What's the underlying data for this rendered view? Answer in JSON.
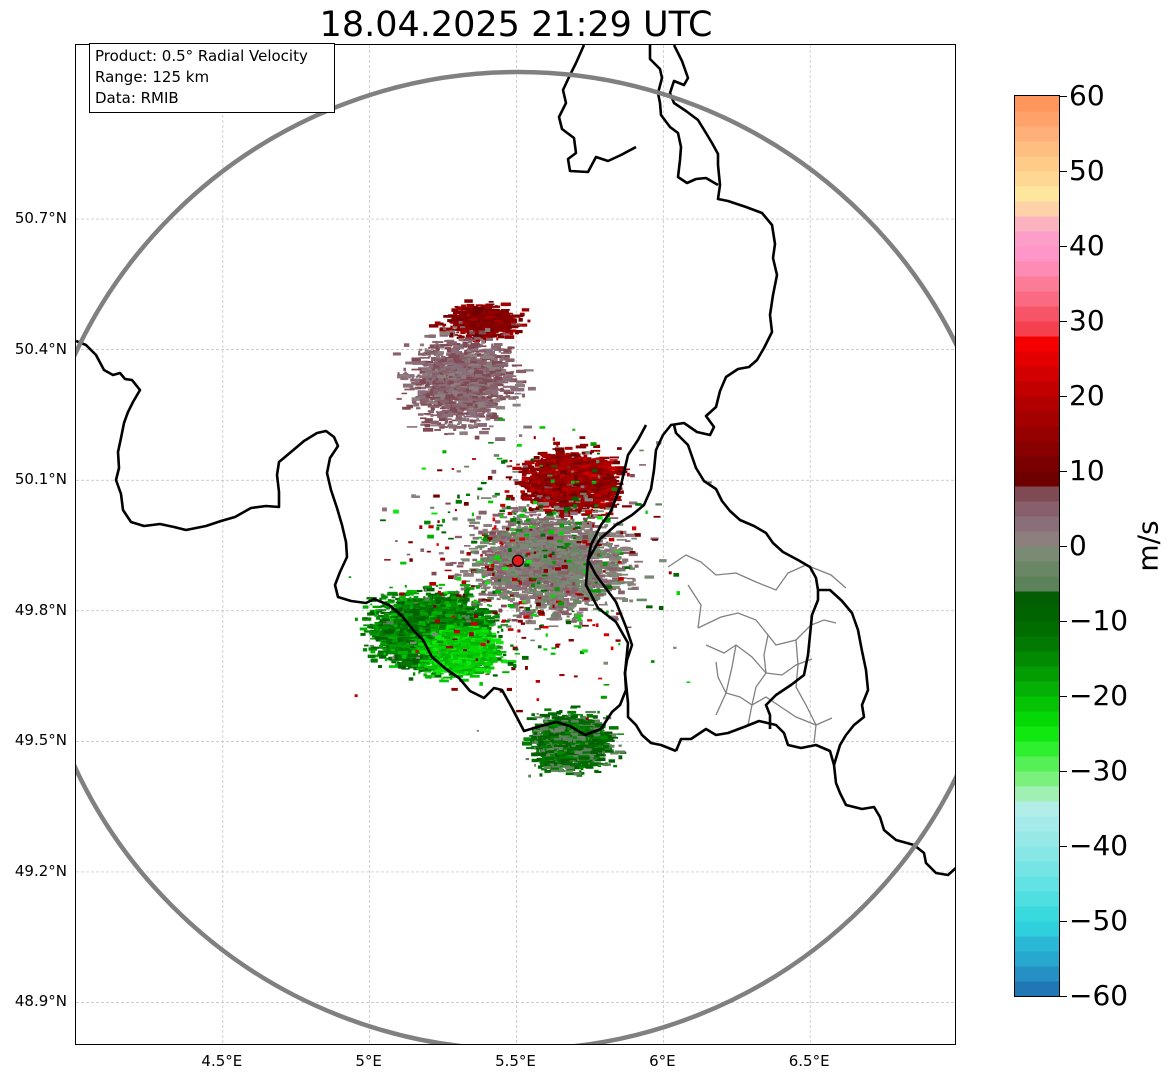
{
  "title": "18.04.2025 21:29 UTC",
  "info": {
    "product": "Product: 0.5° Radial Velocity",
    "range": "Range: 125 km",
    "data": "Data: RMIB"
  },
  "map": {
    "lon_range": [
      4.0,
      7.0
    ],
    "lat_range": [
      48.8,
      51.1
    ],
    "lon_ticks": [
      {
        "value": 4.5,
        "label": "4.5°E"
      },
      {
        "value": 5.0,
        "label": "5°E"
      },
      {
        "value": 5.5,
        "label": "5.5°E"
      },
      {
        "value": 6.0,
        "label": "6°E"
      },
      {
        "value": 6.5,
        "label": "6.5°E"
      }
    ],
    "lat_ticks": [
      {
        "value": 50.7,
        "label": "50.7°N"
      },
      {
        "value": 50.4,
        "label": "50.4°N"
      },
      {
        "value": 50.1,
        "label": "50.1°N"
      },
      {
        "value": 49.8,
        "label": "49.8°N"
      },
      {
        "value": 49.5,
        "label": "49.5°N"
      },
      {
        "value": 49.2,
        "label": "49.2°N"
      },
      {
        "value": 48.9,
        "label": "48.9°N"
      }
    ],
    "gridlines": true,
    "radar_site": {
      "lon": 5.505,
      "lat": 49.915,
      "color": "#e31a1c"
    },
    "range_ring_km": 125,
    "range_ring_color": "#808080"
  },
  "colorbar": {
    "unit": "m/s",
    "min": -60,
    "max": 60,
    "ticks": [
      {
        "value": 60,
        "label": "60"
      },
      {
        "value": 50,
        "label": "50"
      },
      {
        "value": 40,
        "label": "40"
      },
      {
        "value": 30,
        "label": "30"
      },
      {
        "value": 20,
        "label": "20"
      },
      {
        "value": 10,
        "label": "10"
      },
      {
        "value": 0,
        "label": "0"
      },
      {
        "value": -10,
        "label": "−10"
      },
      {
        "value": -20,
        "label": "−20"
      },
      {
        "value": -30,
        "label": "−30"
      },
      {
        "value": -40,
        "label": "−40"
      },
      {
        "value": -50,
        "label": "−50"
      },
      {
        "value": -60,
        "label": "−60"
      }
    ],
    "bands": [
      {
        "from": -60,
        "to": -58,
        "color": "#1f78b4"
      },
      {
        "from": -58,
        "to": -56,
        "color": "#2590c4"
      },
      {
        "from": -56,
        "to": -54,
        "color": "#27a8cf"
      },
      {
        "from": -54,
        "to": -52,
        "color": "#2ab8d6"
      },
      {
        "from": -52,
        "to": -50,
        "color": "#2dd0dc"
      },
      {
        "from": -50,
        "to": -48,
        "color": "#38dade"
      },
      {
        "from": -48,
        "to": -46,
        "color": "#4fdfe0"
      },
      {
        "from": -46,
        "to": -44,
        "color": "#62e2e2"
      },
      {
        "from": -44,
        "to": -42,
        "color": "#74e5e4"
      },
      {
        "from": -42,
        "to": -40,
        "color": "#86e7e6"
      },
      {
        "from": -40,
        "to": -38,
        "color": "#97e9e8"
      },
      {
        "from": -38,
        "to": -36,
        "color": "#a6ebeb"
      },
      {
        "from": -36,
        "to": -34,
        "color": "#b2ede8"
      },
      {
        "from": -34,
        "to": -32,
        "color": "#a0f0b4"
      },
      {
        "from": -32,
        "to": -30,
        "color": "#7cf07c"
      },
      {
        "from": -30,
        "to": -28,
        "color": "#55f055"
      },
      {
        "from": -28,
        "to": -26,
        "color": "#2ef02e"
      },
      {
        "from": -26,
        "to": -24,
        "color": "#10e810"
      },
      {
        "from": -24,
        "to": -22,
        "color": "#05d805"
      },
      {
        "from": -22,
        "to": -20,
        "color": "#04c404"
      },
      {
        "from": -20,
        "to": -18,
        "color": "#04b004"
      },
      {
        "from": -18,
        "to": -16,
        "color": "#039c03"
      },
      {
        "from": -16,
        "to": -14,
        "color": "#038a03"
      },
      {
        "from": -14,
        "to": -12,
        "color": "#027a02"
      },
      {
        "from": -12,
        "to": -10,
        "color": "#016d01"
      },
      {
        "from": -10,
        "to": -8,
        "color": "#016401"
      },
      {
        "from": -8,
        "to": -6,
        "color": "#035e03"
      },
      {
        "from": -6,
        "to": -4,
        "color": "#5c8259"
      },
      {
        "from": -4,
        "to": -2,
        "color": "#6a8765"
      },
      {
        "from": -2,
        "to": 0,
        "color": "#7b8a74"
      },
      {
        "from": 0,
        "to": 2,
        "color": "#8c7f7d"
      },
      {
        "from": 2,
        "to": 4,
        "color": "#8a6f7a"
      },
      {
        "from": 4,
        "to": 6,
        "color": "#87606b"
      },
      {
        "from": 6,
        "to": 8,
        "color": "#7f4a53"
      },
      {
        "from": 8,
        "to": 10,
        "color": "#6e0000"
      },
      {
        "from": 10,
        "to": 12,
        "color": "#7a0000"
      },
      {
        "from": 12,
        "to": 14,
        "color": "#880000"
      },
      {
        "from": 14,
        "to": 16,
        "color": "#960000"
      },
      {
        "from": 16,
        "to": 18,
        "color": "#a40000"
      },
      {
        "from": 18,
        "to": 20,
        "color": "#b20000"
      },
      {
        "from": 20,
        "to": 22,
        "color": "#c20000"
      },
      {
        "from": 22,
        "to": 24,
        "color": "#d20000"
      },
      {
        "from": 24,
        "to": 26,
        "color": "#e40000"
      },
      {
        "from": 26,
        "to": 28,
        "color": "#f50000"
      },
      {
        "from": 28,
        "to": 30,
        "color": "#f5404f"
      },
      {
        "from": 30,
        "to": 32,
        "color": "#f85468"
      },
      {
        "from": 32,
        "to": 34,
        "color": "#fa6a80"
      },
      {
        "from": 34,
        "to": 36,
        "color": "#fc7c98"
      },
      {
        "from": 36,
        "to": 38,
        "color": "#fd8cb4"
      },
      {
        "from": 38,
        "to": 40,
        "color": "#ff95c8"
      },
      {
        "from": 40,
        "to": 42,
        "color": "#fc9ec8"
      },
      {
        "from": 42,
        "to": 44,
        "color": "#fcb3c0"
      },
      {
        "from": 44,
        "to": 46,
        "color": "#fdd2a8"
      },
      {
        "from": 46,
        "to": 48,
        "color": "#fee69c"
      },
      {
        "from": 48,
        "to": 50,
        "color": "#fed892"
      },
      {
        "from": 50,
        "to": 52,
        "color": "#fecb88"
      },
      {
        "from": 52,
        "to": 54,
        "color": "#febe80"
      },
      {
        "from": 54,
        "to": 56,
        "color": "#feb078"
      },
      {
        "from": 56,
        "to": 58,
        "color": "#fea26a"
      },
      {
        "from": 58,
        "to": 60,
        "color": "#fe955c"
      }
    ]
  }
}
